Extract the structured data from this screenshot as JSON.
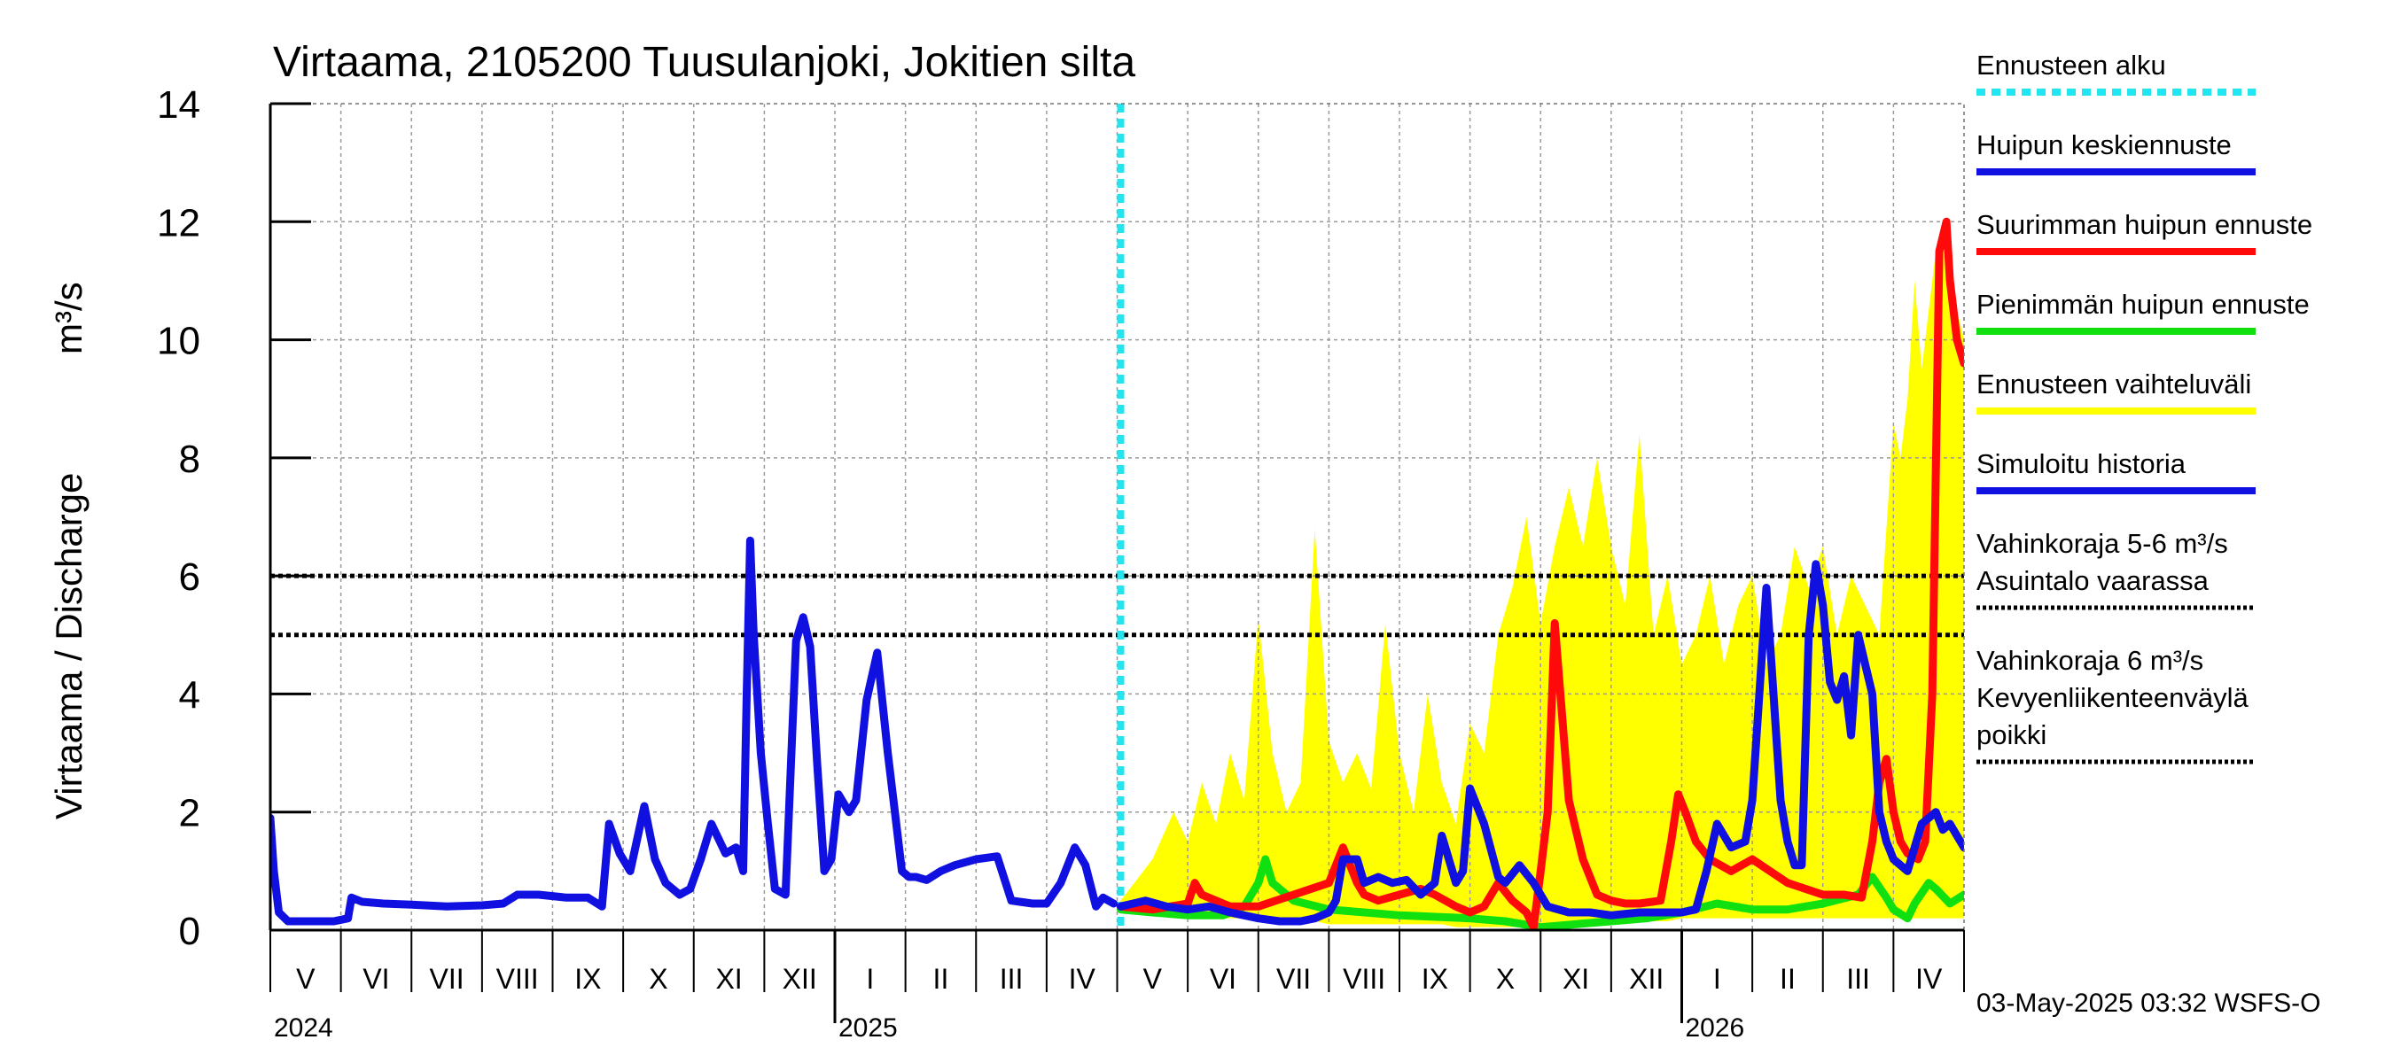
{
  "chart_data": {
    "type": "line",
    "title": "Virtaama, 2105200 Tuusulanjoki, Jokitien silta",
    "ylabel": "Virtaama / Discharge",
    "yunit": "m³/s",
    "ylim": [
      0,
      14
    ],
    "yticks": [
      "0",
      "2",
      "4",
      "6",
      "8",
      "10",
      "12",
      "14"
    ],
    "xlim": [
      0,
      24
    ],
    "months": [
      {
        "label": "V",
        "x": 0
      },
      {
        "label": "VI",
        "x": 1
      },
      {
        "label": "VII",
        "x": 2
      },
      {
        "label": "VIII",
        "x": 3
      },
      {
        "label": "IX",
        "x": 4
      },
      {
        "label": "X",
        "x": 5
      },
      {
        "label": "XI",
        "x": 6
      },
      {
        "label": "XII",
        "x": 7
      },
      {
        "label": "I",
        "x": 8
      },
      {
        "label": "II",
        "x": 9
      },
      {
        "label": "III",
        "x": 10
      },
      {
        "label": "IV",
        "x": 11
      },
      {
        "label": "V",
        "x": 12
      },
      {
        "label": "VI",
        "x": 13
      },
      {
        "label": "VII",
        "x": 14
      },
      {
        "label": "VIII",
        "x": 15
      },
      {
        "label": "IX",
        "x": 16
      },
      {
        "label": "X",
        "x": 17
      },
      {
        "label": "XI",
        "x": 18
      },
      {
        "label": "XII",
        "x": 19
      },
      {
        "label": "I",
        "x": 20
      },
      {
        "label": "II",
        "x": 21
      },
      {
        "label": "III",
        "x": 22
      },
      {
        "label": "IV",
        "x": 23
      }
    ],
    "years": [
      {
        "label": "2024",
        "x": 0
      },
      {
        "label": "2025",
        "x": 8
      },
      {
        "label": "2026",
        "x": 20
      }
    ],
    "forecast_start_x": 12.05,
    "thresholds": [
      {
        "name": "Vahinkoraja 5-6 m³/s Asuintalo vaarassa",
        "value": 5
      },
      {
        "name": "Vahinkoraja 6 m³/s Kevyenliikenteenväylä poikki",
        "value": 6
      }
    ],
    "legend": [
      {
        "lines": [
          "Ennusteen alku"
        ],
        "color": "#22e5f0",
        "style": "dashed"
      },
      {
        "lines": [
          "Huipun keskiennuste"
        ],
        "color": "#1010e0",
        "style": "solid"
      },
      {
        "lines": [
          "Suurimman huipun ennuste"
        ],
        "color": "#ff0a0a",
        "style": "solid"
      },
      {
        "lines": [
          "Pienimmän huipun ennuste"
        ],
        "color": "#10e010",
        "style": "solid"
      },
      {
        "lines": [
          "Ennusteen vaihteluväli"
        ],
        "color": "#ffff00",
        "style": "solid"
      },
      {
        "lines": [
          "Simuloitu historia"
        ],
        "color": "#1010e0",
        "style": "solid"
      },
      {
        "lines": [
          "Vahinkoraja 5-6 m³/s",
          "Asuintalo vaarassa"
        ],
        "color": "#000000",
        "style": "dotted"
      },
      {
        "lines": [
          "Vahinkoraja 6 m³/s",
          "Kevyenliikenteenväylä",
          "  poikki"
        ],
        "color": "#000000",
        "style": "dotted"
      }
    ],
    "series": [
      {
        "name": "Simuloitu historia",
        "color": "#1010e0",
        "x": [
          0,
          0.05,
          0.12,
          0.25,
          0.4,
          0.6,
          0.9,
          1.1,
          1.15,
          1.3,
          1.6,
          2.0,
          2.5,
          3.0,
          3.3,
          3.5,
          3.8,
          4.2,
          4.5,
          4.7,
          4.8,
          4.95,
          5.1,
          5.3,
          5.45,
          5.6,
          5.8,
          5.95,
          6.1,
          6.25,
          6.45,
          6.6,
          6.7,
          6.75,
          6.8,
          6.85,
          6.95,
          7.05,
          7.15,
          7.3,
          7.45,
          7.55,
          7.65,
          7.75,
          7.85,
          7.95,
          8.05,
          8.2,
          8.3,
          8.45,
          8.6,
          8.75,
          8.85,
          8.95,
          9.05,
          9.15,
          9.3,
          9.5,
          9.7,
          10.0,
          10.3,
          10.5,
          10.8,
          11.0,
          11.2,
          11.4,
          11.55,
          11.7,
          11.8,
          11.95
        ],
        "y": [
          1.9,
          1.0,
          0.3,
          0.15,
          0.15,
          0.15,
          0.15,
          0.2,
          0.55,
          0.48,
          0.45,
          0.43,
          0.4,
          0.42,
          0.45,
          0.6,
          0.6,
          0.55,
          0.55,
          0.4,
          1.8,
          1.3,
          1.0,
          2.1,
          1.2,
          0.8,
          0.6,
          0.7,
          1.2,
          1.8,
          1.3,
          1.4,
          1.0,
          4.0,
          6.6,
          5.0,
          3.0,
          1.8,
          0.7,
          0.6,
          4.9,
          5.3,
          4.8,
          2.8,
          1.0,
          1.2,
          2.3,
          2.0,
          2.2,
          3.9,
          4.7,
          3.0,
          2.0,
          1.0,
          0.9,
          0.9,
          0.85,
          1.0,
          1.1,
          1.2,
          1.25,
          0.5,
          0.45,
          0.45,
          0.8,
          1.4,
          1.1,
          0.4,
          0.55,
          0.45
        ]
      },
      {
        "name": "Pienimmän huipun ennuste",
        "color": "#10e010",
        "x": [
          12.05,
          12.5,
          13.0,
          13.5,
          13.8,
          14.0,
          14.1,
          14.2,
          14.5,
          15.0,
          16.0,
          17.0,
          17.5,
          18.0,
          18.5,
          19.0,
          19.5,
          20.0,
          20.5,
          21.0,
          21.5,
          22.0,
          22.5,
          22.7,
          22.9,
          23.0,
          23.2,
          23.3,
          23.5,
          23.6,
          23.8,
          24.0
        ],
        "y": [
          0.35,
          0.3,
          0.25,
          0.25,
          0.4,
          0.8,
          1.2,
          0.8,
          0.5,
          0.35,
          0.25,
          0.2,
          0.15,
          0.05,
          0.1,
          0.15,
          0.2,
          0.3,
          0.45,
          0.35,
          0.35,
          0.45,
          0.6,
          0.9,
          0.55,
          0.35,
          0.2,
          0.45,
          0.8,
          0.7,
          0.45,
          0.6
        ]
      },
      {
        "name": "Suurimman huipun ennuste",
        "color": "#ff0a0a",
        "x": [
          12.05,
          12.5,
          13.0,
          13.1,
          13.2,
          13.4,
          13.6,
          14.0,
          14.5,
          15.0,
          15.2,
          15.4,
          15.5,
          15.7,
          16.0,
          16.3,
          16.5,
          16.8,
          17.0,
          17.2,
          17.4,
          17.6,
          17.8,
          17.9,
          18.0,
          18.1,
          18.2,
          18.4,
          18.6,
          18.8,
          19.0,
          19.2,
          19.4,
          19.7,
          19.85,
          19.95,
          20.05,
          20.2,
          20.4,
          20.7,
          21.0,
          21.5,
          22.0,
          22.3,
          22.55,
          22.7,
          22.8,
          22.9,
          23.0,
          23.1,
          23.2,
          23.35,
          23.45,
          23.55,
          23.65,
          23.75,
          23.8,
          23.85,
          23.9,
          23.95,
          24.0
        ],
        "y": [
          0.4,
          0.35,
          0.45,
          0.8,
          0.6,
          0.5,
          0.4,
          0.4,
          0.6,
          0.8,
          1.4,
          0.8,
          0.6,
          0.5,
          0.6,
          0.7,
          0.6,
          0.4,
          0.3,
          0.4,
          0.8,
          0.5,
          0.3,
          0.05,
          1.0,
          2.0,
          5.2,
          2.2,
          1.2,
          0.6,
          0.5,
          0.45,
          0.45,
          0.5,
          1.5,
          2.3,
          2.0,
          1.5,
          1.2,
          1.0,
          1.2,
          0.8,
          0.6,
          0.6,
          0.55,
          1.5,
          2.5,
          2.9,
          2.0,
          1.5,
          1.3,
          1.2,
          1.5,
          4.0,
          11.5,
          12.0,
          11.0,
          10.5,
          10.0,
          9.8,
          9.6
        ]
      },
      {
        "name": "Huipun keskiennuste",
        "color": "#1010e0",
        "x": [
          12.05,
          12.4,
          12.7,
          13.0,
          13.3,
          13.6,
          14.0,
          14.3,
          14.6,
          14.8,
          15.0,
          15.1,
          15.2,
          15.4,
          15.5,
          15.7,
          15.9,
          16.1,
          16.3,
          16.5,
          16.6,
          16.8,
          16.9,
          17.0,
          17.2,
          17.4,
          17.5,
          17.7,
          17.9,
          18.1,
          18.4,
          18.7,
          19.0,
          19.4,
          19.7,
          20.0,
          20.2,
          20.35,
          20.5,
          20.7,
          20.9,
          21.0,
          21.2,
          21.3,
          21.4,
          21.5,
          21.6,
          21.7,
          21.8,
          21.9,
          22.0,
          22.1,
          22.2,
          22.3,
          22.4,
          22.5,
          22.6,
          22.7,
          22.8,
          22.9,
          23.0,
          23.2,
          23.4,
          23.5,
          23.6,
          23.7,
          23.8,
          23.9,
          24.0
        ],
        "y": [
          0.4,
          0.5,
          0.4,
          0.35,
          0.4,
          0.3,
          0.2,
          0.15,
          0.15,
          0.2,
          0.3,
          0.5,
          1.2,
          1.2,
          0.8,
          0.9,
          0.8,
          0.85,
          0.6,
          0.8,
          1.6,
          0.8,
          1.0,
          2.4,
          1.8,
          0.9,
          0.8,
          1.1,
          0.8,
          0.4,
          0.3,
          0.3,
          0.25,
          0.3,
          0.3,
          0.3,
          0.35,
          1.0,
          1.8,
          1.4,
          1.5,
          2.2,
          5.8,
          4.0,
          2.2,
          1.5,
          1.1,
          1.1,
          5.0,
          6.2,
          5.5,
          4.2,
          3.9,
          4.3,
          3.3,
          5.0,
          4.5,
          4.0,
          2.0,
          1.5,
          1.2,
          1.0,
          1.8,
          1.9,
          2.0,
          1.7,
          1.8,
          1.6,
          1.4
        ]
      }
    ],
    "band": {
      "name": "Ennusteen vaihteluväli",
      "color": "#ffff00",
      "x": [
        12.05,
        12.5,
        12.8,
        13.0,
        13.2,
        13.4,
        13.6,
        13.8,
        14.0,
        14.2,
        14.4,
        14.6,
        14.8,
        15.0,
        15.2,
        15.4,
        15.6,
        15.8,
        16.0,
        16.2,
        16.4,
        16.6,
        16.8,
        17.0,
        17.2,
        17.4,
        17.6,
        17.8,
        18.0,
        18.2,
        18.4,
        18.6,
        18.8,
        19.0,
        19.2,
        19.4,
        19.6,
        19.8,
        20.0,
        20.2,
        20.4,
        20.6,
        20.8,
        21.0,
        21.2,
        21.4,
        21.6,
        21.8,
        22.0,
        22.2,
        22.4,
        22.6,
        22.8,
        23.0,
        23.1,
        23.2,
        23.3,
        23.4,
        23.5,
        23.6,
        23.7,
        23.8,
        23.9,
        24.0
      ],
      "upper": [
        0.5,
        1.2,
        2.0,
        1.5,
        2.5,
        1.8,
        3.0,
        2.2,
        5.3,
        3.0,
        2.0,
        2.5,
        6.8,
        3.2,
        2.5,
        3.0,
        2.4,
        5.2,
        3.0,
        2.0,
        4.0,
        2.5,
        1.8,
        3.5,
        3.0,
        5.0,
        5.8,
        7.0,
        5.2,
        6.5,
        7.5,
        6.5,
        8.0,
        6.5,
        5.5,
        8.4,
        5.0,
        6.0,
        4.5,
        5.0,
        6.0,
        4.5,
        5.5,
        6.0,
        4.5,
        5.0,
        6.5,
        5.8,
        6.5,
        5.0,
        6.0,
        5.5,
        5.0,
        8.6,
        8.0,
        9.0,
        11.0,
        9.5,
        10.5,
        11.5,
        12.0,
        11.0,
        10.5,
        10.0
      ],
      "lower": [
        0.3,
        0.25,
        0.2,
        0.2,
        0.2,
        0.2,
        0.2,
        0.2,
        0.15,
        0.15,
        0.15,
        0.15,
        0.15,
        0.1,
        0.1,
        0.1,
        0.1,
        0.1,
        0.1,
        0.1,
        0.1,
        0.1,
        0.05,
        0.05,
        0.05,
        0.05,
        0.05,
        0.05,
        0.05,
        0.05,
        0.05,
        0.1,
        0.1,
        0.1,
        0.1,
        0.15,
        0.15,
        0.15,
        0.2,
        0.2,
        0.2,
        0.2,
        0.2,
        0.2,
        0.2,
        0.2,
        0.2,
        0.2,
        0.2,
        0.2,
        0.2,
        0.2,
        0.2,
        0.2,
        0.2,
        0.2,
        0.2,
        0.2,
        0.2,
        0.2,
        0.2,
        0.2,
        0.2,
        0.2
      ]
    }
  },
  "footer": "03-May-2025 03:32 WSFS-O"
}
